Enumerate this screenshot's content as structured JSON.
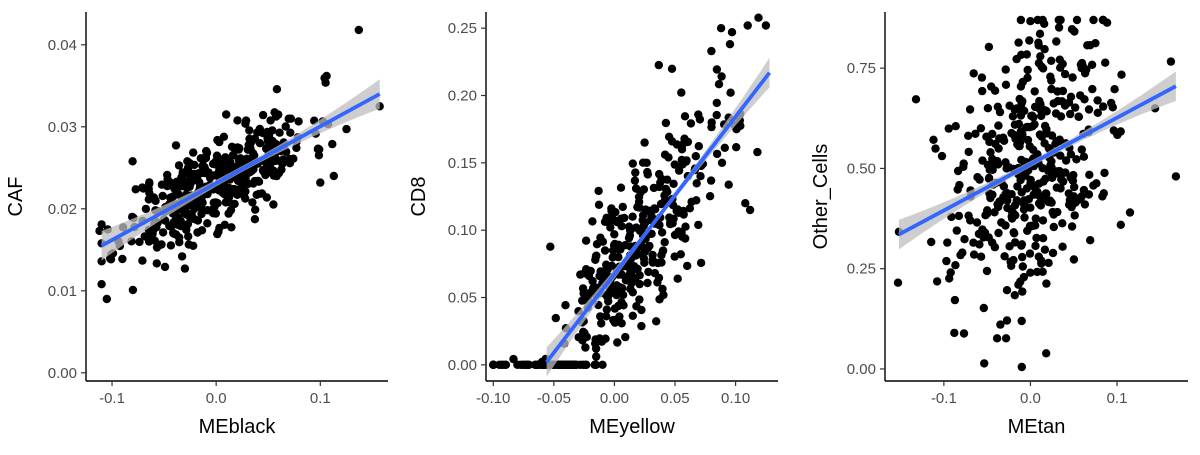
{
  "chart_data": [
    {
      "type": "scatter",
      "title": "",
      "xlabel": "MEblack",
      "ylabel": "CAF",
      "xlim": [
        -0.125,
        0.165
      ],
      "ylim": [
        -0.001,
        0.044
      ],
      "x_ticks": [
        -0.1,
        0.0,
        0.1
      ],
      "x_tick_labels": [
        "-0.1",
        "0.0",
        "0.1"
      ],
      "y_ticks": [
        0.0,
        0.01,
        0.02,
        0.03,
        0.04
      ],
      "y_tick_labels": [
        "0.00",
        "0.01",
        "0.02",
        "0.03",
        "0.04"
      ],
      "grid": false,
      "fit": {
        "method": "linear",
        "x_start": -0.11,
        "y_start": 0.0155,
        "x_end": 0.157,
        "y_end": 0.034,
        "se_band": true
      },
      "points": {
        "n": 420,
        "center_x": 0.0,
        "sd_x": 0.045,
        "x_range": [
          -0.11,
          0.157
        ],
        "slope": 0.069,
        "intercept": 0.0232,
        "resid_sd": 0.0028,
        "y_floor": 0.0085,
        "seed": 11
      },
      "extra_points": [
        [
          0.137,
          0.0418
        ],
        [
          0.106,
          0.0362
        ],
        [
          0.157,
          0.0325
        ],
        [
          -0.105,
          0.009
        ],
        [
          -0.08,
          0.0101
        ],
        [
          0.1,
          0.0232
        ],
        [
          0.113,
          0.024
        ],
        [
          -0.112,
          0.0173
        ]
      ]
    },
    {
      "type": "scatter",
      "title": "",
      "xlabel": "MEyellow",
      "ylabel": "CD8",
      "xlim": [
        -0.106,
        0.135
      ],
      "ylim": [
        -0.012,
        0.262
      ],
      "x_ticks": [
        -0.1,
        -0.05,
        0.0,
        0.05,
        0.1
      ],
      "x_tick_labels": [
        "-0.10",
        "-0.05",
        "0.00",
        "0.05",
        "0.10"
      ],
      "y_ticks": [
        0.0,
        0.05,
        0.1,
        0.15,
        0.2,
        0.25
      ],
      "y_tick_labels": [
        "0.00",
        "0.05",
        "0.10",
        "0.15",
        "0.20",
        "0.25"
      ],
      "grid": false,
      "fit": {
        "method": "linear",
        "x_start": -0.056,
        "y_start": 0.002,
        "x_end": 0.128,
        "y_end": 0.217,
        "se_band": true
      },
      "points": {
        "n": 420,
        "center_x": 0.005,
        "sd_x": 0.04,
        "x_range": [
          -0.1,
          0.128
        ],
        "slope": 1.17,
        "intercept": 0.068,
        "resid_sd": 0.03,
        "y_floor": 0.0,
        "clip_zero_below": -0.03,
        "seed": 22
      },
      "extra_points": [
        [
          0.125,
          0.252
        ],
        [
          0.11,
          0.252
        ],
        [
          0.097,
          0.247
        ],
        [
          0.08,
          0.233
        ],
        [
          0.088,
          0.25
        ],
        [
          0.118,
          0.158
        ],
        [
          0.112,
          0.115
        ],
        [
          0.108,
          0.12
        ],
        [
          -0.025,
          0.0
        ],
        [
          -0.095,
          0.0
        ]
      ]
    },
    {
      "type": "scatter",
      "title": "",
      "xlabel": "MEtan",
      "ylabel": "Other_Cells",
      "xlim": [
        -0.168,
        0.182
      ],
      "ylim": [
        -0.03,
        0.89
      ],
      "x_ticks": [
        -0.1,
        0.0,
        0.1
      ],
      "x_tick_labels": [
        "-0.1",
        "0.0",
        "0.1"
      ],
      "y_ticks": [
        0.0,
        0.25,
        0.5,
        0.75
      ],
      "y_tick_labels": [
        "0.00",
        "0.25",
        "0.50",
        "0.75"
      ],
      "grid": false,
      "fit": {
        "method": "linear",
        "x_start": -0.152,
        "y_start": 0.335,
        "x_end": 0.168,
        "y_end": 0.705,
        "se_band": true
      },
      "points": {
        "n": 420,
        "center_x": 0.0,
        "sd_x": 0.045,
        "x_range": [
          -0.152,
          0.168
        ],
        "slope": 1.16,
        "intercept": 0.511,
        "resid_sd": 0.16,
        "y_floor": 0.0,
        "y_ceil": 0.87,
        "seed": 33
      },
      "extra_points": [
        [
          -0.153,
          0.215
        ],
        [
          0.168,
          0.48
        ],
        [
          0.0,
          0.867
        ],
        [
          -0.048,
          0.803
        ],
        [
          0.115,
          0.39
        ],
        [
          -0.088,
          0.09
        ],
        [
          -0.01,
          0.005
        ],
        [
          0.144,
          0.65
        ]
      ]
    }
  ],
  "style": {
    "point_color": "#000000",
    "fit_color": "#3366ff",
    "band_color": "#bebebe",
    "axis_color": "#000000",
    "tick_label_color": "#4d4d4d"
  }
}
